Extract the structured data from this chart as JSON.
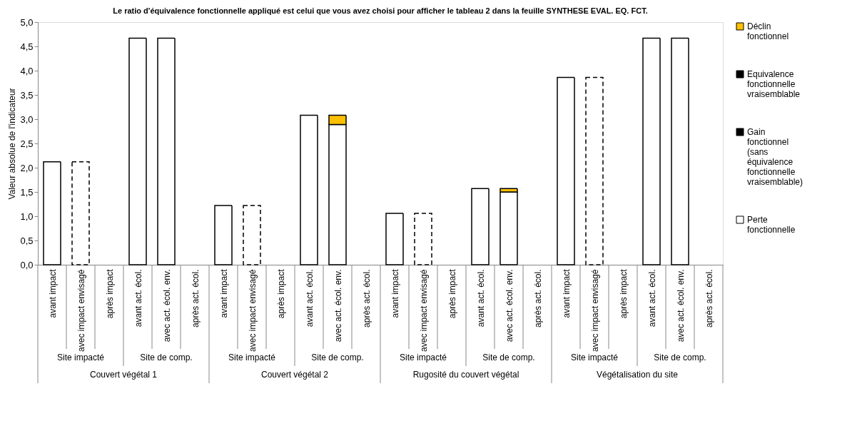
{
  "chart_data": {
    "type": "bar",
    "stacked": true,
    "subtitle": "Le ratio d'équivalence fonctionnelle appliqué est celui que vous avez choisi pour afficher le tableau 2 dans la feuille SYNTHESE EVAL. EQ. FCT.",
    "ylabel": "Valeur absolue de l'indicateur",
    "categories": [
      "avant impact",
      "avec impact envisagé",
      "après impact",
      "avant act. écol.",
      "avec act. écol. env.",
      "après act. écol.",
      "avant impact",
      "avec impact envisagé",
      "après impact",
      "avant act. écol.",
      "avec act. écol. env.",
      "après act. écol.",
      "avant impact",
      "avec impact envisagé",
      "après impact",
      "avant act. écol.",
      "avec act. écol. env.",
      "après act. écol.",
      "avant impact",
      "avec impact envisagé",
      "après impact",
      "avant act. écol.",
      "avec act. écol. env.",
      "après act. écol."
    ],
    "series": [
      {
        "color": "#ffffff",
        "values": [
          2.12,
          null,
          null,
          4.67,
          4.67,
          null,
          1.22,
          null,
          null,
          3.08,
          2.89,
          null,
          1.06,
          null,
          null,
          1.57,
          1.5,
          null,
          3.86,
          null,
          null,
          4.67,
          4.67,
          null
        ]
      },
      {
        "name": "Perte fonctionnelle",
        "color": "#ffffff",
        "line_style": "dashed",
        "values": [
          null,
          2.12,
          null,
          null,
          null,
          null,
          null,
          1.22,
          null,
          null,
          null,
          null,
          null,
          1.06,
          null,
          null,
          null,
          null,
          null,
          3.86,
          null,
          null,
          null,
          null
        ]
      },
      {
        "name": "Gain fonctionnel (sans équivalence fonctionnelle vraisemblable)",
        "color": "#000000",
        "values": [
          null,
          null,
          null,
          null,
          null,
          null,
          null,
          null,
          null,
          null,
          null,
          null,
          null,
          null,
          null,
          null,
          null,
          null,
          null,
          null,
          null,
          null,
          null,
          null
        ]
      },
      {
        "name": "Equivalence fonctionnelle vraisemblable",
        "color": "#000000",
        "values": [
          null,
          null,
          null,
          null,
          null,
          null,
          null,
          null,
          null,
          null,
          null,
          null,
          null,
          null,
          null,
          null,
          null,
          null,
          null,
          null,
          null,
          null,
          null,
          null
        ]
      },
      {
        "name": "Déclin fonctionnel",
        "color": "#ffc000",
        "values": [
          null,
          null,
          null,
          null,
          null,
          null,
          null,
          null,
          null,
          null,
          0.19,
          null,
          null,
          null,
          null,
          null,
          0.07,
          null,
          null,
          null,
          null,
          null,
          null,
          null
        ]
      }
    ],
    "ylim": [
      0,
      5
    ],
    "yticks": [
      {
        "value": 0,
        "label": "0,0"
      },
      {
        "value": 0.5,
        "label": "0,5"
      },
      {
        "value": 1,
        "label": "1,0"
      },
      {
        "value": 1.5,
        "label": "1,5"
      },
      {
        "value": 2,
        "label": "2,0"
      },
      {
        "value": 2.5,
        "label": "2,5"
      },
      {
        "value": 3,
        "label": "3,0"
      },
      {
        "value": 3.5,
        "label": "3,5"
      },
      {
        "value": 4,
        "label": "4,0"
      },
      {
        "value": 4.5,
        "label": "4,5"
      },
      {
        "value": 5,
        "label": "5,0"
      }
    ],
    "annotations": [
      "Site impacté",
      "Site de comp.",
      "Site impacté",
      "Site de comp.",
      "Site impacté",
      "Site de comp.",
      "Site impacté",
      "Site de comp.",
      "Couvert végétal 1",
      "Couvert végétal 2",
      "Rugosité du couvert végétal",
      "Végétalisation du site"
    ],
    "grid": false,
    "legend": "right"
  }
}
